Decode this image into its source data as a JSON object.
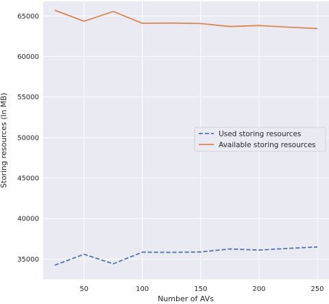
{
  "chart_data": {
    "type": "line",
    "title": "",
    "xlabel": "Number of AVs",
    "ylabel": "Storing resources (In MB)",
    "xlim": [
      15,
      260
    ],
    "ylim": [
      32500,
      66800
    ],
    "xticks": [
      50,
      100,
      150,
      200,
      250
    ],
    "yticks": [
      35000,
      40000,
      45000,
      50000,
      55000,
      60000,
      65000
    ],
    "grid": true,
    "legend": {
      "placement": "center-right"
    },
    "x": [
      25,
      50,
      75,
      100,
      125,
      150,
      175,
      200,
      225,
      250
    ],
    "series": [
      {
        "name": "Used storing resources",
        "style": "dashed",
        "color": "#4c72b0",
        "values": [
          34250,
          35600,
          34420,
          35850,
          35830,
          35880,
          36250,
          36120,
          36320,
          36500
        ]
      },
      {
        "name": "Available storing resources",
        "style": "solid",
        "color": "#dd8452",
        "values": [
          65700,
          64350,
          65550,
          64100,
          64120,
          64060,
          63700,
          63820,
          63620,
          63450
        ]
      }
    ]
  }
}
